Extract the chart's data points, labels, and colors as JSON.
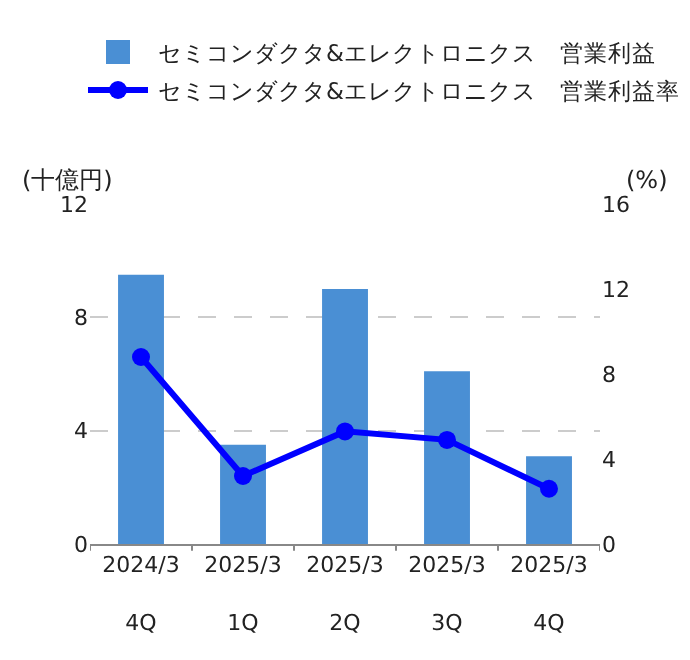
{
  "chart_data": {
    "type": "bar",
    "categories": [
      "2024/3\n4Q",
      "2025/3\n1Q",
      "2025/3\n2Q",
      "2025/3\n3Q",
      "2025/3\n4Q"
    ],
    "series": [
      {
        "name": "セミコンダクタ&エレクトロニクス　営業利益",
        "color": "#4a8fd4",
        "values": [
          9.5,
          3.5,
          9.0,
          6.1,
          3.1
        ]
      },
      {
        "name": "セミコンダクタ&エレクトロニクス　営業利益率",
        "type": "line",
        "axis": "y2",
        "color": "#0000ff",
        "values": [
          8.8,
          3.2,
          5.3,
          4.9,
          2.6
        ]
      }
    ],
    "ylabel": "(十億円)",
    "y2label": "(%)",
    "ylim": [
      0,
      12
    ],
    "yticks": [
      0,
      4,
      8,
      12
    ],
    "y2lim": [
      0,
      16
    ],
    "y2ticks": [
      0,
      4,
      8,
      12,
      16
    ],
    "grid": "y",
    "legend": "top",
    "marker": "circle",
    "line_style": "solid"
  }
}
